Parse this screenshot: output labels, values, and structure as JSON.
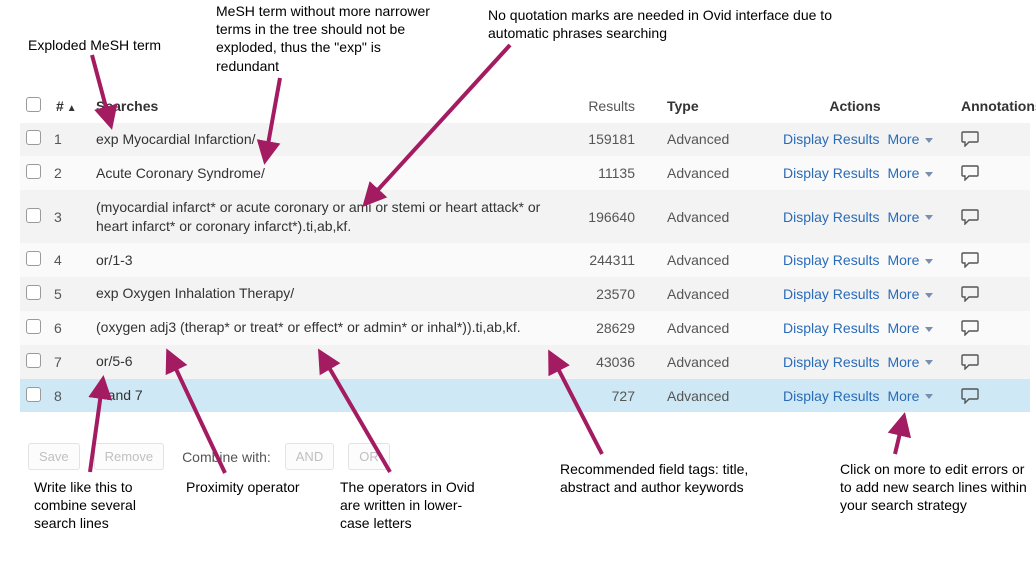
{
  "colors": {
    "accent": "#a31b60",
    "link": "#2a6bb7",
    "row_odd": "#f3f3f3",
    "row_even": "#fafafa",
    "row_selected": "#cee9f5"
  },
  "header": {
    "num": "#",
    "searches": "Searches",
    "results": "Results",
    "type": "Type",
    "actions": "Actions",
    "annotations": "Annotations"
  },
  "row_action": {
    "display": "Display Results",
    "more": "More"
  },
  "rows": [
    {
      "idx": "1",
      "search": "exp Myocardial Infarction/",
      "results": "159181",
      "type": "Advanced"
    },
    {
      "idx": "2",
      "search": "Acute Coronary Syndrome/",
      "results": "11135",
      "type": "Advanced"
    },
    {
      "idx": "3",
      "search": "(myocardial infarct* or acute coronary or ami or stemi or heart attack* or heart infarct* or coronary infarct*).ti,ab,kf.",
      "results": "196640",
      "type": "Advanced"
    },
    {
      "idx": "4",
      "search": "or/1-3",
      "results": "244311",
      "type": "Advanced"
    },
    {
      "idx": "5",
      "search": "exp Oxygen Inhalation Therapy/",
      "results": "23570",
      "type": "Advanced"
    },
    {
      "idx": "6",
      "search": "(oxygen adj3 (therap* or treat* or effect* or admin* or inhal*)).ti,ab,kf.",
      "results": "28629",
      "type": "Advanced"
    },
    {
      "idx": "7",
      "search": "or/5-6",
      "results": "43036",
      "type": "Advanced"
    },
    {
      "idx": "8",
      "search": "4 and 7",
      "results": "727",
      "type": "Advanced"
    }
  ],
  "footer": {
    "save": "Save",
    "remove": "Remove",
    "combine": "Combine with:",
    "and": "AND",
    "or": "OR"
  },
  "notes": {
    "exploded": "Exploded MeSH term",
    "redundant": "MeSH term without more narrower terms in the tree should not be exploded, thus the \"exp\" is redundant",
    "noquotes": "No quotation marks are needed in Ovid interface due to automatic phrases searching",
    "writelike": "Write like this to combine several search lines",
    "proximity": "Proximity operator",
    "lowercase": "The operators in Ovid are written in lower-case letters",
    "fieldtags": "Recommended field tags: title, abstract and author keywords",
    "clickmore": "Click on more to edit errors or to add new search lines within your search strategy"
  }
}
